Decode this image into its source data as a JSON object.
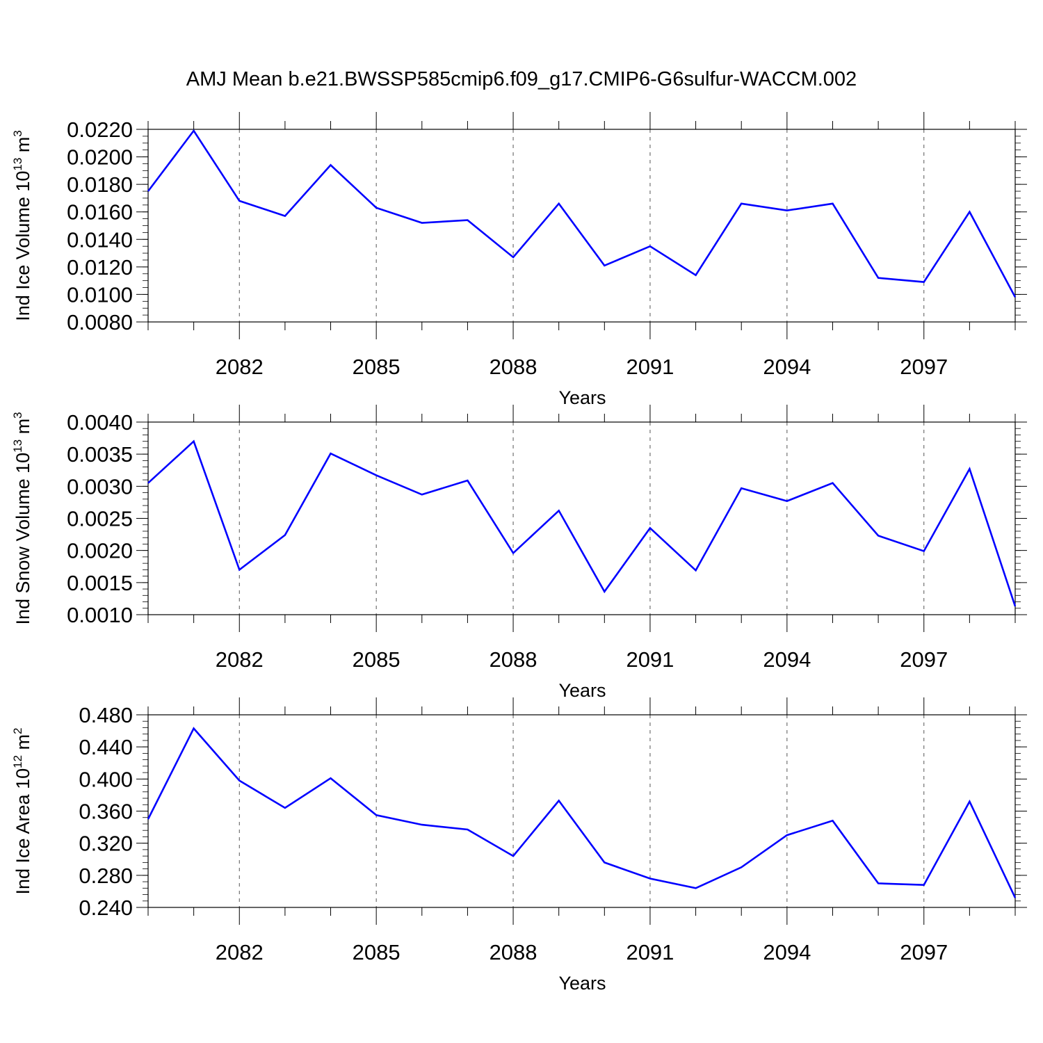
{
  "title": "AMJ Mean b.e21.BWSSP585cmip6.f09_g17.CMIP6-G6sulfur-WACCM.002",
  "chart_data": [
    {
      "type": "line",
      "ylabel": "Ind Ice Volume 10",
      "ylabel_sup": "13",
      "ylabel_unit": "m",
      "ylabel_unit_sup": "3",
      "xlabel": "Years",
      "xlim": [
        2080,
        2099
      ],
      "ylim": [
        0.008,
        0.022
      ],
      "yticks": [
        "0.0080",
        "0.0100",
        "0.0120",
        "0.0140",
        "0.0160",
        "0.0180",
        "0.0200",
        "0.0220"
      ],
      "ytick_values": [
        0.008,
        0.01,
        0.012,
        0.014,
        0.016,
        0.018,
        0.02,
        0.022
      ],
      "yminor_step": 0.0005,
      "xticks": [
        "2082",
        "2085",
        "2088",
        "2091",
        "2094",
        "2097"
      ],
      "xtick_values": [
        2082,
        2085,
        2088,
        2091,
        2094,
        2097
      ],
      "grid": "vertical dashed at labeled years",
      "series": [
        {
          "color": "#0000ff",
          "x": [
            2080,
            2081,
            2082,
            2083,
            2084,
            2085,
            2086,
            2087,
            2088,
            2089,
            2090,
            2091,
            2092,
            2093,
            2094,
            2095,
            2096,
            2097,
            2098,
            2099
          ],
          "y": [
            0.0175,
            0.0219,
            0.0168,
            0.0157,
            0.0194,
            0.0163,
            0.0152,
            0.0154,
            0.0127,
            0.0166,
            0.0121,
            0.0135,
            0.0114,
            0.0166,
            0.0161,
            0.0166,
            0.0112,
            0.0109,
            0.016,
            0.0098
          ]
        }
      ]
    },
    {
      "type": "line",
      "ylabel": "Ind Snow Volume 10",
      "ylabel_sup": "13",
      "ylabel_unit": "m",
      "ylabel_unit_sup": "3",
      "xlabel": "Years",
      "xlim": [
        2080,
        2099
      ],
      "ylim": [
        0.001,
        0.004
      ],
      "yticks": [
        "0.0010",
        "0.0015",
        "0.0020",
        "0.0025",
        "0.0030",
        "0.0035",
        "0.0040"
      ],
      "ytick_values": [
        0.001,
        0.0015,
        0.002,
        0.0025,
        0.003,
        0.0035,
        0.004
      ],
      "yminor_step": 0.0001,
      "xticks": [
        "2082",
        "2085",
        "2088",
        "2091",
        "2094",
        "2097"
      ],
      "xtick_values": [
        2082,
        2085,
        2088,
        2091,
        2094,
        2097
      ],
      "grid": "vertical dashed at labeled years",
      "series": [
        {
          "color": "#0000ff",
          "x": [
            2080,
            2081,
            2082,
            2083,
            2084,
            2085,
            2086,
            2087,
            2088,
            2089,
            2090,
            2091,
            2092,
            2093,
            2094,
            2095,
            2096,
            2097,
            2098,
            2099
          ],
          "y": [
            0.00305,
            0.0037,
            0.0017,
            0.00224,
            0.00351,
            0.00317,
            0.00287,
            0.00309,
            0.00196,
            0.00262,
            0.00136,
            0.00235,
            0.00169,
            0.00297,
            0.00277,
            0.00305,
            0.00223,
            0.00199,
            0.00327,
            0.00113
          ]
        }
      ]
    },
    {
      "type": "line",
      "ylabel": "Ind Ice Area 10",
      "ylabel_sup": "12",
      "ylabel_unit": "m",
      "ylabel_unit_sup": "2",
      "xlabel": "Years",
      "xlim": [
        2080,
        2099
      ],
      "ylim": [
        0.24,
        0.48
      ],
      "yticks": [
        "0.240",
        "0.280",
        "0.320",
        "0.360",
        "0.400",
        "0.440",
        "0.480"
      ],
      "ytick_values": [
        0.24,
        0.28,
        0.32,
        0.36,
        0.4,
        0.44,
        0.48
      ],
      "yminor_step": 0.008,
      "xticks": [
        "2082",
        "2085",
        "2088",
        "2091",
        "2094",
        "2097"
      ],
      "xtick_values": [
        2082,
        2085,
        2088,
        2091,
        2094,
        2097
      ],
      "grid": "vertical dashed at labeled years",
      "series": [
        {
          "color": "#0000ff",
          "x": [
            2080,
            2081,
            2082,
            2083,
            2084,
            2085,
            2086,
            2087,
            2088,
            2089,
            2090,
            2091,
            2092,
            2093,
            2094,
            2095,
            2096,
            2097,
            2098,
            2099
          ],
          "y": [
            0.35,
            0.463,
            0.398,
            0.364,
            0.401,
            0.355,
            0.343,
            0.337,
            0.304,
            0.373,
            0.296,
            0.276,
            0.264,
            0.29,
            0.33,
            0.348,
            0.27,
            0.268,
            0.372,
            0.252
          ]
        }
      ]
    }
  ]
}
